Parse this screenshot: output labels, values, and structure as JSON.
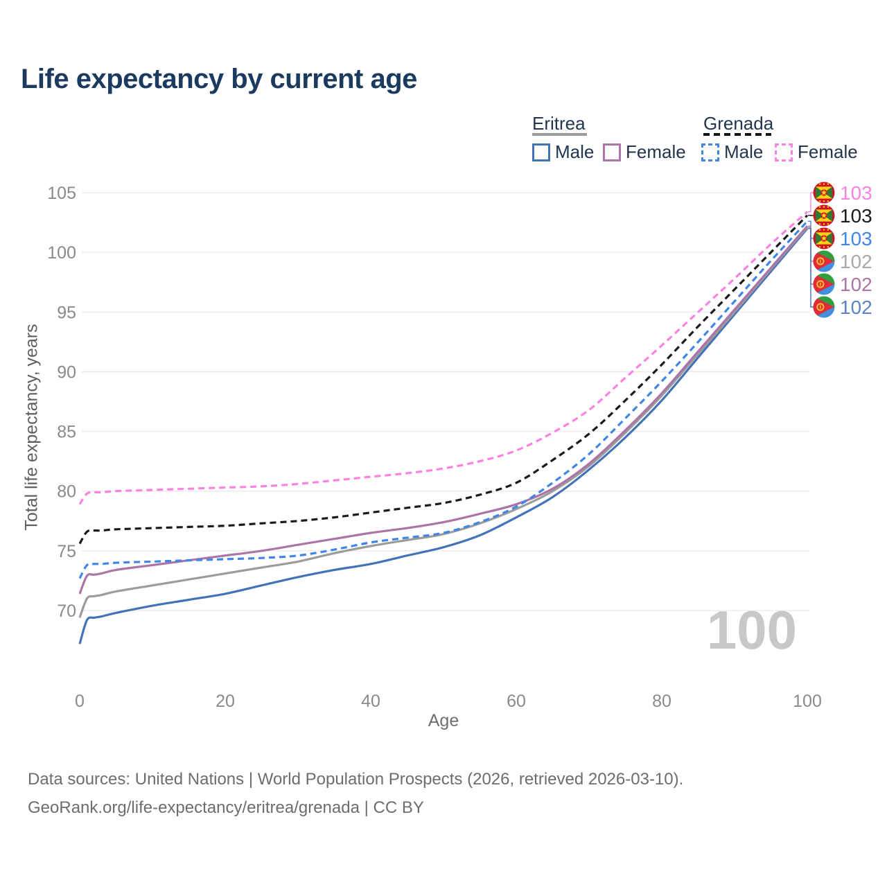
{
  "title": "Life expectancy by current age",
  "watermark": "100",
  "legend": {
    "groups": [
      {
        "name": "Eritrea",
        "line_style": "solid",
        "underline_color": "#9c9c9c",
        "items": [
          {
            "label": "Male",
            "color": "#4273b8"
          },
          {
            "label": "Female",
            "color": "#ad74a8"
          }
        ]
      },
      {
        "name": "Grenada",
        "line_style": "dashed",
        "underline_color": "#141414",
        "items": [
          {
            "label": "Male",
            "color": "#3f86e8"
          },
          {
            "label": "Female",
            "color": "#fc82e1"
          }
        ]
      }
    ]
  },
  "chart_data": {
    "type": "line",
    "title": "Life expectancy by current age",
    "xlabel": "Age",
    "ylabel": "Total life expectancy, years",
    "xticks": [
      0,
      20,
      40,
      60,
      80,
      100
    ],
    "yticks": [
      70,
      75,
      80,
      85,
      90,
      95,
      100,
      105
    ],
    "xlim": [
      0,
      100
    ],
    "ylim": [
      66.5,
      105.5
    ],
    "grid": "horizontal-only",
    "legend_position": "top-right",
    "x": [
      0,
      1,
      2,
      3,
      5,
      10,
      15,
      20,
      25,
      30,
      35,
      40,
      45,
      50,
      55,
      60,
      65,
      70,
      75,
      80,
      85,
      90,
      95,
      100
    ],
    "series": [
      {
        "name": "Grenada Female",
        "country": "Grenada",
        "sex": "Female",
        "style": "dashed",
        "color": "#fc82e1",
        "end_label": "103",
        "end_label_color": "#fc82e1",
        "flag": "grenada",
        "values": [
          78.9,
          79.8,
          79.9,
          79.9,
          80.0,
          80.1,
          80.2,
          80.3,
          80.4,
          80.6,
          80.9,
          81.2,
          81.5,
          81.9,
          82.5,
          83.4,
          84.9,
          86.8,
          89.5,
          92.2,
          95.0,
          97.8,
          100.7,
          103.4
        ]
      },
      {
        "name": "Grenada Both sexes",
        "country": "Grenada",
        "sex": "Both sexes",
        "style": "dashed",
        "color": "#1a1a1a",
        "end_label": "103",
        "end_label_color": "#1a1a1a",
        "flag": "grenada",
        "values": [
          75.6,
          76.6,
          76.7,
          76.7,
          76.8,
          76.9,
          77.0,
          77.1,
          77.3,
          77.5,
          77.8,
          78.2,
          78.6,
          79.0,
          79.7,
          80.7,
          82.6,
          84.8,
          87.6,
          90.6,
          93.8,
          96.9,
          100.0,
          103.1
        ]
      },
      {
        "name": "Grenada Male",
        "country": "Grenada",
        "sex": "Male",
        "style": "dashed",
        "color": "#3f86e8",
        "end_label": "103",
        "end_label_color": "#3f86e8",
        "flag": "grenada",
        "values": [
          72.7,
          73.8,
          73.9,
          73.9,
          74.0,
          74.1,
          74.2,
          74.3,
          74.4,
          74.6,
          75.1,
          75.7,
          76.1,
          76.5,
          77.4,
          78.7,
          80.7,
          83.1,
          86.1,
          89.2,
          92.5,
          95.9,
          99.3,
          102.6
        ]
      },
      {
        "name": "Eritrea Both sexes",
        "country": "Eritrea",
        "sex": "Both sexes",
        "style": "solid",
        "color": "#9c9c9c",
        "end_label": "102",
        "end_label_color": "#a9a9a9",
        "flag": "eritrea",
        "values": [
          69.4,
          71.0,
          71.2,
          71.3,
          71.6,
          72.1,
          72.6,
          73.1,
          73.6,
          74.1,
          74.8,
          75.4,
          75.9,
          76.4,
          77.3,
          78.5,
          80.0,
          82.1,
          84.9,
          88.0,
          91.5,
          95.0,
          98.6,
          102.1
        ]
      },
      {
        "name": "Eritrea Female",
        "country": "Eritrea",
        "sex": "Female",
        "style": "solid",
        "color": "#ad74a8",
        "end_label": "102",
        "end_label_color": "#ad74a8",
        "flag": "eritrea",
        "values": [
          71.4,
          72.9,
          73.0,
          73.1,
          73.4,
          73.8,
          74.2,
          74.6,
          75.0,
          75.5,
          76.0,
          76.5,
          76.9,
          77.4,
          78.1,
          78.9,
          80.2,
          82.3,
          85.1,
          88.2,
          91.7,
          95.2,
          98.7,
          102.2
        ]
      },
      {
        "name": "Eritrea Male",
        "country": "Eritrea",
        "sex": "Male",
        "style": "solid",
        "color": "#4273b8",
        "end_label": "102",
        "end_label_color": "#5b83c4",
        "flag": "eritrea",
        "values": [
          67.2,
          69.2,
          69.4,
          69.5,
          69.8,
          70.4,
          70.9,
          71.4,
          72.1,
          72.8,
          73.4,
          73.9,
          74.6,
          75.3,
          76.3,
          77.8,
          79.5,
          81.8,
          84.5,
          87.6,
          91.2,
          94.8,
          98.4,
          102.0
        ]
      }
    ]
  },
  "footer": {
    "line1": "Data sources: United Nations | World Population Prospects (2026, retrieved 2026-03-10).",
    "line2": "GeoRank.org/life-expectancy/eritrea/grenada | CC BY"
  }
}
